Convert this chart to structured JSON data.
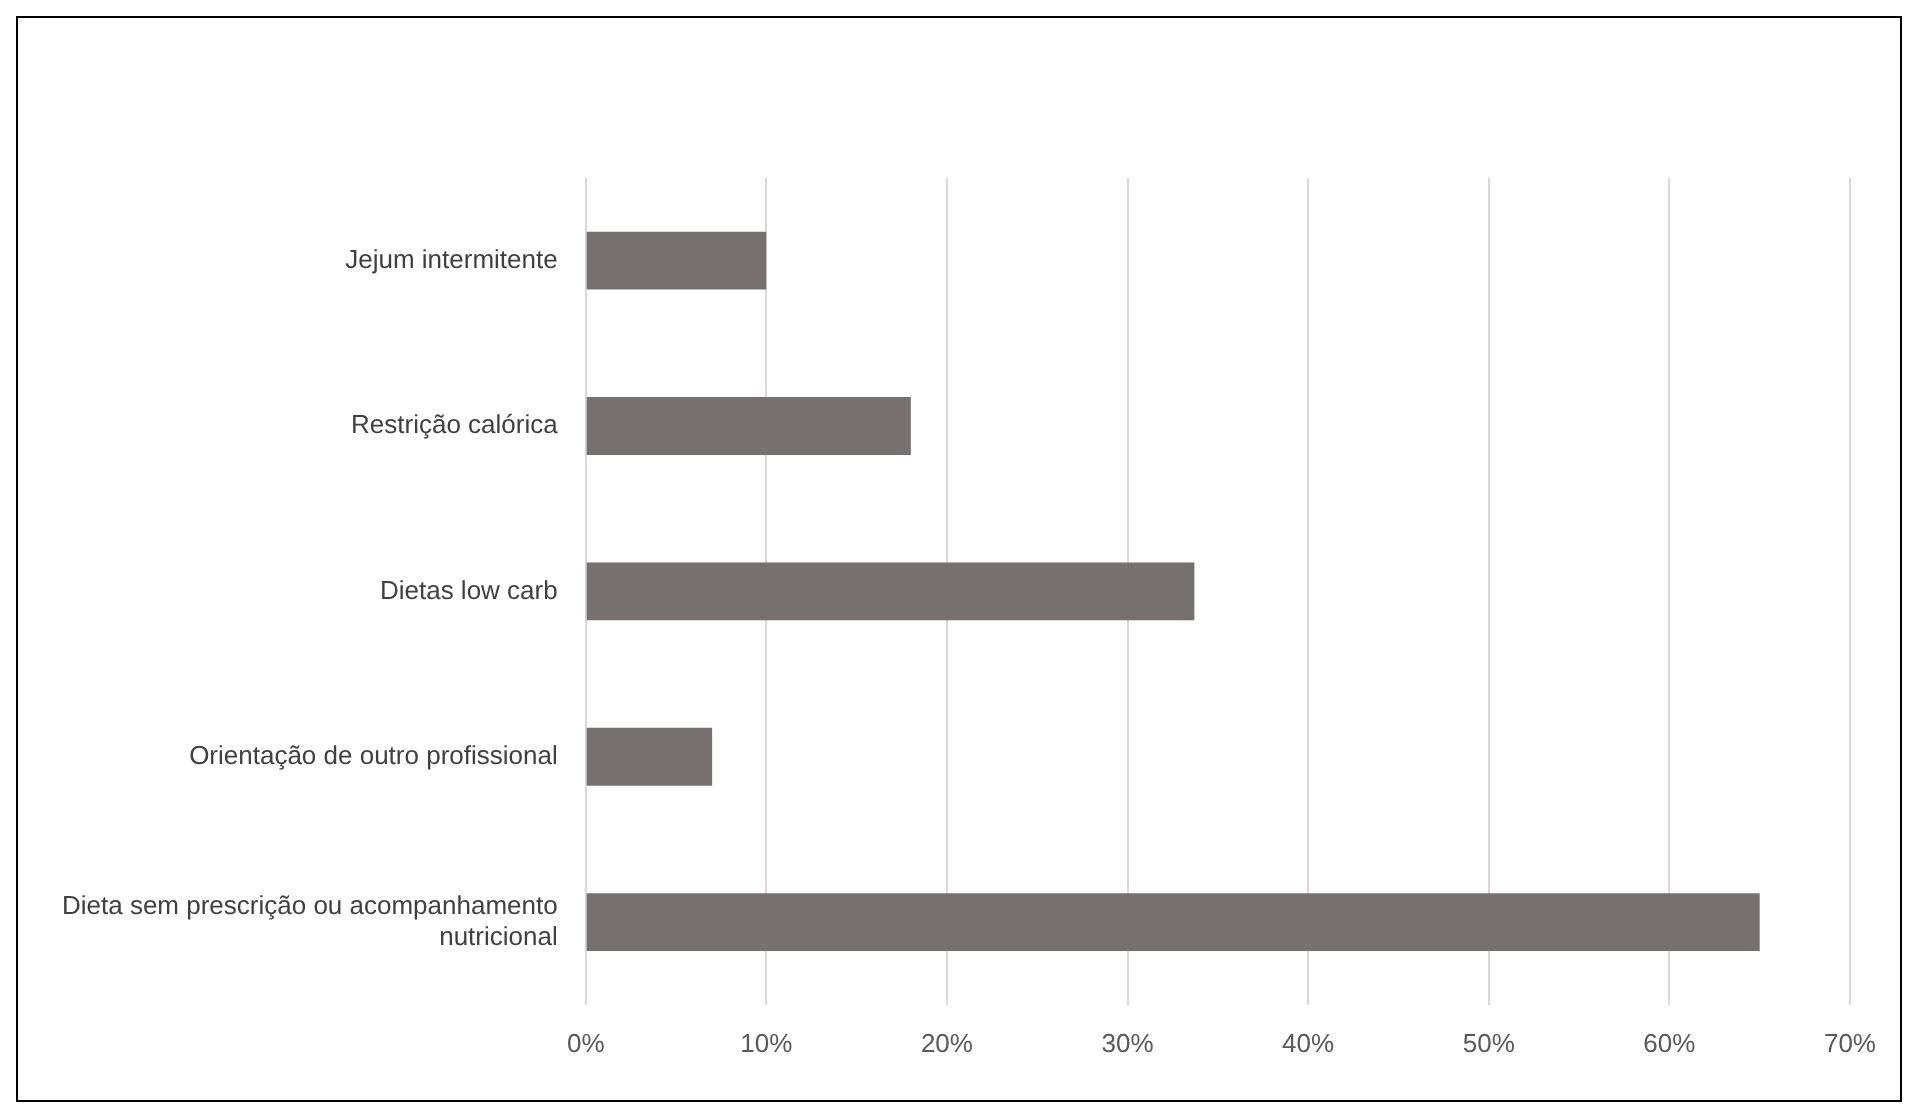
{
  "chart_data": {
    "type": "bar",
    "orientation": "horizontal",
    "categories": [
      "Jejum intermitente",
      "Restrição calórica",
      "Dietas low carb",
      "Orientação de outro profissional",
      "Dieta sem prescrição ou acompanhamento nutricional"
    ],
    "values": [
      10,
      18,
      33.7,
      7,
      65
    ],
    "color": "#767170",
    "xlim": [
      0,
      70
    ],
    "xticks": [
      {
        "value": 0,
        "label": "0%"
      },
      {
        "value": 10,
        "label": "10%"
      },
      {
        "value": 20,
        "label": "20%"
      },
      {
        "value": 30,
        "label": "30%"
      },
      {
        "value": 40,
        "label": "40%"
      },
      {
        "value": 50,
        "label": "50%"
      },
      {
        "value": 60,
        "label": "60%"
      },
      {
        "value": 70,
        "label": "70%"
      }
    ],
    "grid": "x"
  }
}
